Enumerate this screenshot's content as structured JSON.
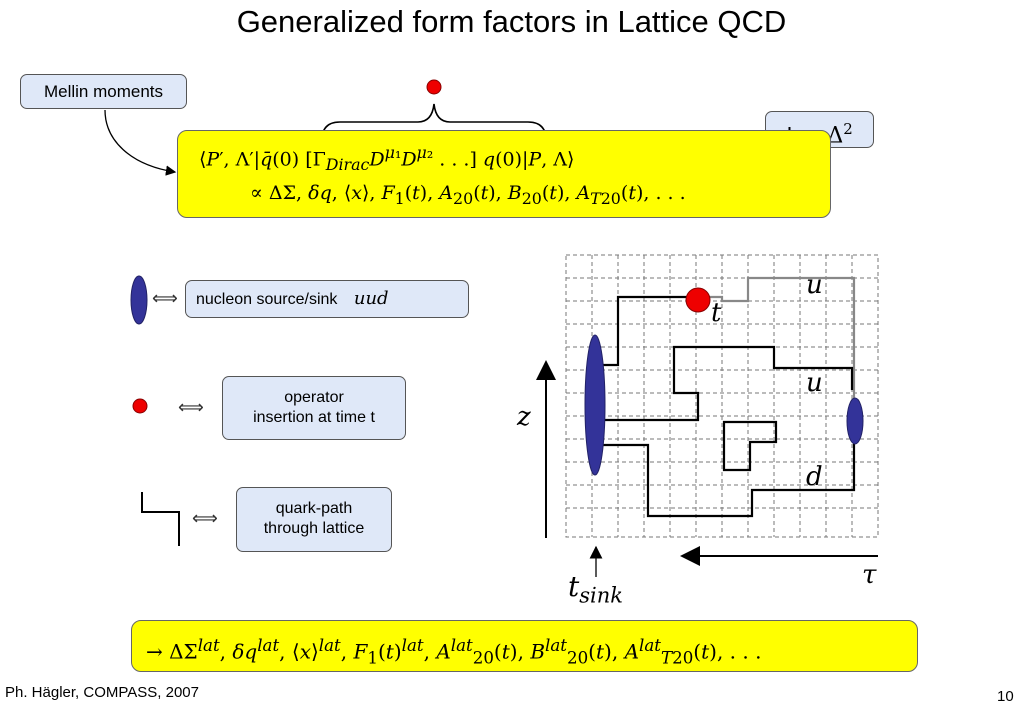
{
  "title": "Generalized form factors in Lattice QCD",
  "mellin_label": "Mellin moments",
  "t_definition": "t = Δ²",
  "matrix_element": "⟨P′,Λ′|q̄(0) [Γ_Dirac D^μ1 D^μ2 …] q(0)|P,Λ⟩",
  "proportional_line": "∝ ΔΣ, δq, ⟨x⟩, F₁(t), A₂₀(t), B₂₀(t), A_T20(t), …",
  "legend": {
    "source_sink": {
      "label": "nucleon source/sink",
      "math": "uud"
    },
    "operator": {
      "line1": "operator",
      "line2": "insertion at time t"
    },
    "quark_path": {
      "line1": "quark-path",
      "line2": "through lattice"
    },
    "equiv_symbol": "⟺"
  },
  "lattice_labels": {
    "u_top": "u",
    "t_label": "t",
    "u_mid": "u",
    "d_label": "d",
    "z_axis": "z",
    "tau_axis": "τ",
    "t_sink": "t_sink"
  },
  "lattice_result": "→ ΔΣ^lat, δq^lat, ⟨x⟩^lat, F₁(t)^lat, A^lat₂₀(t), B^lat₂₀(t), A^lat_T20(t), …",
  "footer": "Ph. Hägler, COMPASS, 2007",
  "page_number": "10",
  "colors": {
    "highlight": "#ffff00",
    "box_fill": "#dfe8f8",
    "source_fill": "#333399",
    "operator_fill": "#ee0000"
  }
}
